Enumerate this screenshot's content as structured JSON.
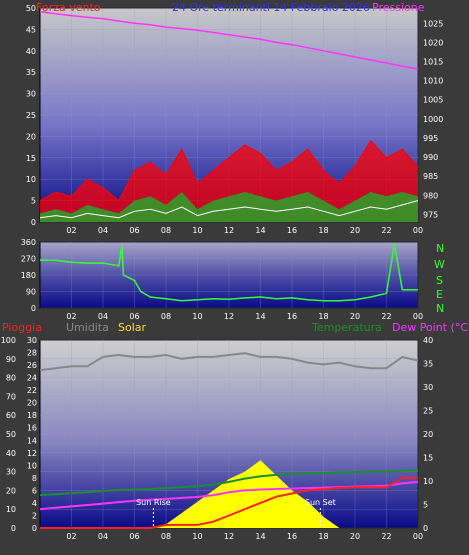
{
  "colors": {
    "wind": "#ff2020",
    "gust": "#ff0000",
    "wind_avg": "#1fae2a",
    "pressure": "#ff33ff",
    "direction": "#33ff33",
    "humidity": "#888888",
    "solar": "#ffff00",
    "temperature": "#1a8f2a",
    "dewpoint": "#ff33ff",
    "rain": "#ff2020",
    "title": "#3030ff"
  },
  "chart_data": [
    {
      "type": "line",
      "title": "24 Ore terminanti 14 Febbraio 2026",
      "legend": [
        "Forza vento",
        "Pressione"
      ],
      "x_ticks": [
        "02",
        "04",
        "06",
        "08",
        "10",
        "12",
        "14",
        "16",
        "18",
        "20",
        "22",
        "00"
      ],
      "left_axis": {
        "label": "Forza vento",
        "ticks": [
          0,
          5,
          10,
          15,
          20,
          25,
          30,
          35,
          40,
          45,
          50
        ],
        "range": [
          0,
          50
        ]
      },
      "right_axis": {
        "label": "Pressione",
        "ticks": [
          975,
          980,
          985,
          990,
          995,
          1000,
          1005,
          1010,
          1015,
          1020,
          1025
        ],
        "range": [
          973,
          1029
        ]
      },
      "x": [
        0,
        1,
        2,
        3,
        4,
        5,
        6,
        7,
        8,
        9,
        10,
        11,
        12,
        13,
        14,
        15,
        16,
        17,
        18,
        19,
        20,
        21,
        22,
        23,
        24
      ],
      "series": [
        {
          "name": "Pressione",
          "axis": "right",
          "values": [
            1028,
            1027.5,
            1027,
            1026.6,
            1026.2,
            1025.6,
            1025,
            1024.6,
            1024,
            1023.6,
            1023.2,
            1022.6,
            1022,
            1021.4,
            1020.8,
            1020,
            1019.4,
            1018.6,
            1017.8,
            1017,
            1016.2,
            1015.4,
            1014.6,
            1013.8,
            1013
          ]
        },
        {
          "name": "gust",
          "axis": "left",
          "values": [
            5,
            7,
            6,
            10,
            8,
            5,
            12,
            14,
            11,
            17,
            9,
            12,
            15,
            18,
            16,
            12,
            14,
            17,
            12,
            9,
            13,
            19,
            15,
            17,
            13
          ]
        },
        {
          "name": "wind",
          "axis": "left",
          "values": [
            2,
            3,
            2,
            4,
            3,
            2,
            5,
            6,
            4,
            7,
            3,
            5,
            6,
            7,
            6,
            5,
            6,
            7,
            5,
            3,
            5,
            7,
            6,
            7,
            6
          ]
        },
        {
          "name": "avg",
          "axis": "left",
          "values": [
            1,
            1.5,
            1,
            2,
            1.5,
            1,
            2.5,
            3,
            2,
            3.5,
            1.5,
            2.5,
            3,
            3.5,
            3,
            2.5,
            3,
            3.5,
            2.5,
            1.5,
            2.5,
            3.5,
            3,
            4,
            5
          ]
        }
      ]
    },
    {
      "type": "line",
      "title": "",
      "legend": [
        "N",
        "W",
        "S",
        "E",
        "N"
      ],
      "x_ticks": [
        "02",
        "04",
        "06",
        "08",
        "10",
        "12",
        "14",
        "16",
        "18",
        "20",
        "22",
        "00"
      ],
      "left_axis": {
        "ticks": [
          0,
          90,
          180,
          270,
          360
        ],
        "range": [
          0,
          360
        ]
      },
      "x": [
        0,
        1,
        2,
        3,
        4,
        5,
        5.2,
        5.3,
        6,
        6.4,
        7,
        8,
        9,
        10,
        11,
        12,
        13,
        14,
        15,
        16,
        17,
        18,
        19,
        20,
        21,
        22,
        22.5,
        23,
        24
      ],
      "series": [
        {
          "name": "direction",
          "values": [
            260,
            260,
            250,
            245,
            245,
            230,
            340,
            180,
            150,
            90,
            60,
            50,
            40,
            45,
            50,
            48,
            55,
            60,
            50,
            55,
            45,
            40,
            40,
            45,
            60,
            80,
            350,
            100,
            100
          ]
        }
      ]
    },
    {
      "type": "line",
      "title": "",
      "legend": [
        "Pioggia",
        "Umidita",
        "Solar",
        "Temperatura",
        "Dew Point (°C)"
      ],
      "x_ticks": [
        "02",
        "04",
        "06",
        "08",
        "10",
        "12",
        "14",
        "16",
        "18",
        "20",
        "22",
        "00"
      ],
      "axes": {
        "pct": {
          "ticks": [
            0,
            10,
            20,
            30,
            40,
            50,
            60,
            70,
            80,
            90,
            100
          ],
          "range": [
            0,
            100
          ]
        },
        "rain": {
          "ticks": [
            0,
            2,
            4,
            6,
            8,
            10,
            12,
            14,
            16,
            18,
            20,
            22,
            24,
            26,
            28,
            30
          ],
          "range": [
            0,
            30
          ]
        },
        "temp": {
          "ticks": [
            0,
            5,
            10,
            15,
            20,
            25,
            30,
            35,
            40
          ],
          "range": [
            0,
            40
          ]
        }
      },
      "annotations": [
        {
          "text": "Sun Rise",
          "x": 7.2
        },
        {
          "text": "Sun Set",
          "x": 17.8
        }
      ],
      "x": [
        0,
        1,
        2,
        3,
        4,
        5,
        6,
        7,
        8,
        9,
        10,
        11,
        12,
        13,
        14,
        15,
        16,
        17,
        18,
        19,
        20,
        21,
        22,
        23,
        24
      ],
      "series": [
        {
          "name": "Umidita",
          "axis": "pct",
          "values": [
            84,
            85,
            86,
            86,
            91,
            92,
            91,
            91,
            92,
            90,
            91,
            91,
            92,
            93,
            91,
            91,
            90,
            88,
            87,
            88,
            86,
            85,
            85,
            91,
            89
          ]
        },
        {
          "name": "Temperatura",
          "axis": "temp",
          "values": [
            7,
            7.2,
            7.4,
            7.6,
            7.9,
            8.1,
            8.2,
            8.3,
            8.5,
            8.7,
            8.9,
            9.2,
            9.8,
            10.5,
            11,
            11.3,
            11.5,
            11.6,
            11.7,
            11.8,
            11.9,
            12,
            12,
            12.2,
            12.3
          ]
        },
        {
          "name": "Dew Point (°C)",
          "axis": "temp",
          "values": [
            4,
            4.3,
            4.6,
            4.9,
            5.2,
            5.5,
            5.8,
            6,
            6.2,
            6.4,
            6.6,
            7,
            7.6,
            8,
            8.2,
            8.3,
            8.4,
            8.5,
            8.6,
            8.7,
            8.8,
            8.9,
            9,
            9.5,
            9.8
          ]
        },
        {
          "name": "Pioggia",
          "axis": "rain",
          "values": [
            0,
            0,
            0,
            0,
            0,
            0,
            0,
            0,
            0.5,
            0.5,
            0.5,
            1,
            2,
            3,
            4,
            5,
            5.5,
            6,
            6.2,
            6.4,
            6.5,
            6.5,
            6.5,
            8,
            8
          ]
        },
        {
          "name": "Solar",
          "axis": "pct",
          "values": [
            0,
            0,
            0,
            0,
            0,
            0,
            0,
            0,
            2,
            8,
            14,
            20,
            26,
            30,
            36,
            28,
            20,
            14,
            6,
            0,
            0,
            0,
            0,
            0,
            0
          ]
        }
      ]
    }
  ]
}
